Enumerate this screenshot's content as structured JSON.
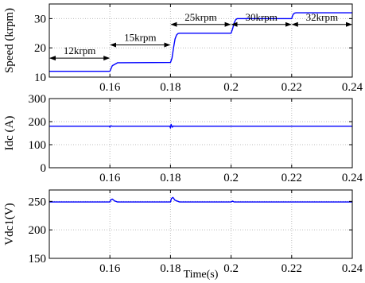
{
  "chart_data": [
    {
      "type": "line",
      "title": "",
      "xlabel": "",
      "ylabel": "Speed (krpm)",
      "xlim": [
        0.14,
        0.24
      ],
      "ylim": [
        10,
        35
      ],
      "grid": true,
      "xticks": [
        0.16,
        0.18,
        0.2,
        0.22,
        0.24
      ],
      "xtick_labels": [
        "0.16",
        "0.18",
        "0.2",
        "0.22",
        "0.24"
      ],
      "yticks": [
        10,
        20,
        30
      ],
      "ytick_labels": [
        "10",
        "20",
        "30"
      ],
      "series": [
        {
          "x": [
            0.14,
            0.16,
            0.1608,
            0.1625,
            0.18,
            0.1805,
            0.181,
            0.1815,
            0.182,
            0.1825,
            0.183,
            0.2,
            0.2005,
            0.201,
            0.2015,
            0.202,
            0.22,
            0.2203,
            0.2206,
            0.221,
            0.2215,
            0.24
          ],
          "values": [
            12,
            12,
            13.9,
            14.9,
            15,
            16.5,
            20,
            23,
            24.4,
            24.9,
            25,
            25,
            26.5,
            28.5,
            29.6,
            30,
            30,
            31,
            31.6,
            31.9,
            32,
            32
          ]
        }
      ],
      "annotations": [
        {
          "text": "12krpm",
          "from": 0.14,
          "to": 0.16,
          "y": 16.5
        },
        {
          "text": "15krpm",
          "from": 0.16,
          "to": 0.18,
          "y": 21
        },
        {
          "text": "25krpm",
          "from": 0.18,
          "to": 0.2,
          "y": 28
        },
        {
          "text": "30krpm",
          "from": 0.2,
          "to": 0.22,
          "y": 28
        },
        {
          "text": "32krpm",
          "from": 0.22,
          "to": 0.24,
          "y": 28
        }
      ]
    },
    {
      "type": "line",
      "title": "",
      "xlabel": "",
      "ylabel": "Idc (A)",
      "xlim": [
        0.14,
        0.24
      ],
      "ylim": [
        0,
        300
      ],
      "grid": true,
      "xticks": [
        0.16,
        0.18,
        0.2,
        0.22,
        0.24
      ],
      "xtick_labels": [
        "0.16",
        "0.18",
        "0.2",
        "0.22",
        "0.24"
      ],
      "yticks": [
        0,
        100,
        200,
        300
      ],
      "ytick_labels": [
        "0",
        "100",
        "200",
        "300"
      ],
      "series": [
        {
          "x": [
            0.14,
            0.1598,
            0.16,
            0.1603,
            0.1608,
            0.1798,
            0.18,
            0.1802,
            0.1806,
            0.181,
            0.1815,
            0.24
          ],
          "values": [
            180,
            180,
            176,
            182,
            180,
            180,
            172,
            188,
            176,
            181,
            180,
            180
          ]
        }
      ]
    },
    {
      "type": "line",
      "title": "",
      "xlabel": "Time(s)",
      "ylabel": "Vdc1(V)",
      "xlim": [
        0.14,
        0.24
      ],
      "ylim": [
        150,
        270
      ],
      "grid": true,
      "xticks": [
        0.16,
        0.18,
        0.2,
        0.22,
        0.24
      ],
      "xtick_labels": [
        "0.16",
        "0.18",
        "0.2",
        "0.22",
        "0.24"
      ],
      "yticks": [
        150,
        200,
        250
      ],
      "ytick_labels": [
        "150",
        "200",
        "250"
      ],
      "series": [
        {
          "x": [
            0.14,
            0.16,
            0.1603,
            0.1608,
            0.1615,
            0.1625,
            0.18,
            0.1803,
            0.1808,
            0.1815,
            0.183,
            0.2,
            0.2005,
            0.201,
            0.24
          ],
          "values": [
            249,
            249,
            253,
            254,
            251,
            249,
            249,
            255,
            257,
            252,
            249,
            249,
            250.5,
            249,
            249
          ]
        }
      ]
    }
  ],
  "colors": {
    "line": "#0000ff",
    "axes": "#000000",
    "grid": "#bdbdbd"
  }
}
